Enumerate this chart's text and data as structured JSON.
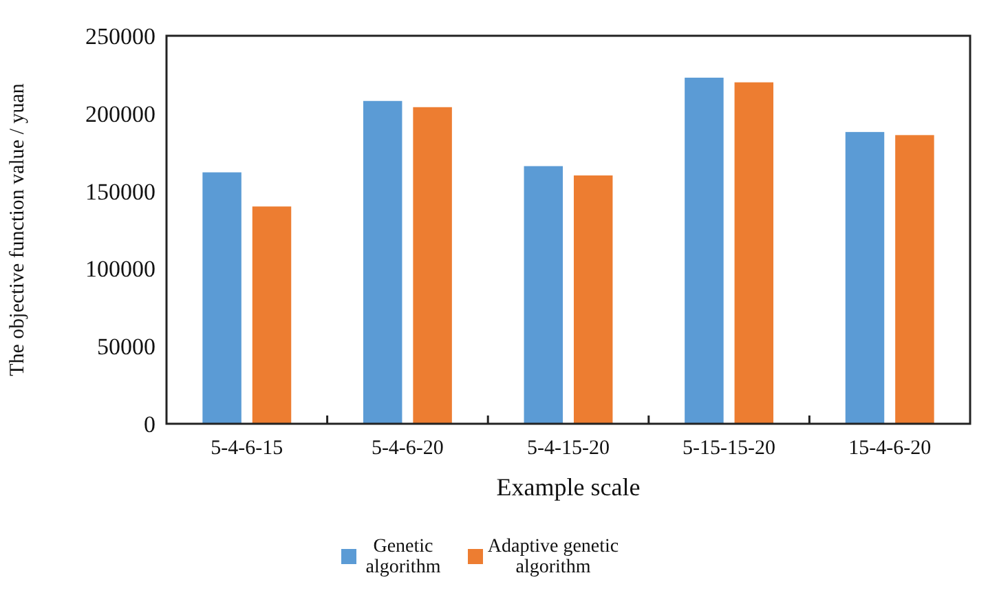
{
  "chart_data": {
    "type": "bar",
    "xlabel": "Example scale",
    "ylabel": "The objective function value / yuan",
    "categories": [
      "5-4-6-15",
      "5-4-6-20",
      "5-4-15-20",
      "5-15-15-20",
      "15-4-6-20"
    ],
    "series": [
      {
        "name": "Genetic algorithm",
        "color": "#5b9bd5",
        "values": [
          162000,
          208000,
          166000,
          223000,
          188000
        ]
      },
      {
        "name": "Adaptive genetic algorithm",
        "color": "#ed7d31",
        "values": [
          140000,
          204000,
          160000,
          220000,
          186000
        ]
      }
    ],
    "ylim": [
      0,
      250000
    ],
    "yticks": [
      0,
      50000,
      100000,
      150000,
      200000,
      250000
    ],
    "legend": "bottom"
  }
}
